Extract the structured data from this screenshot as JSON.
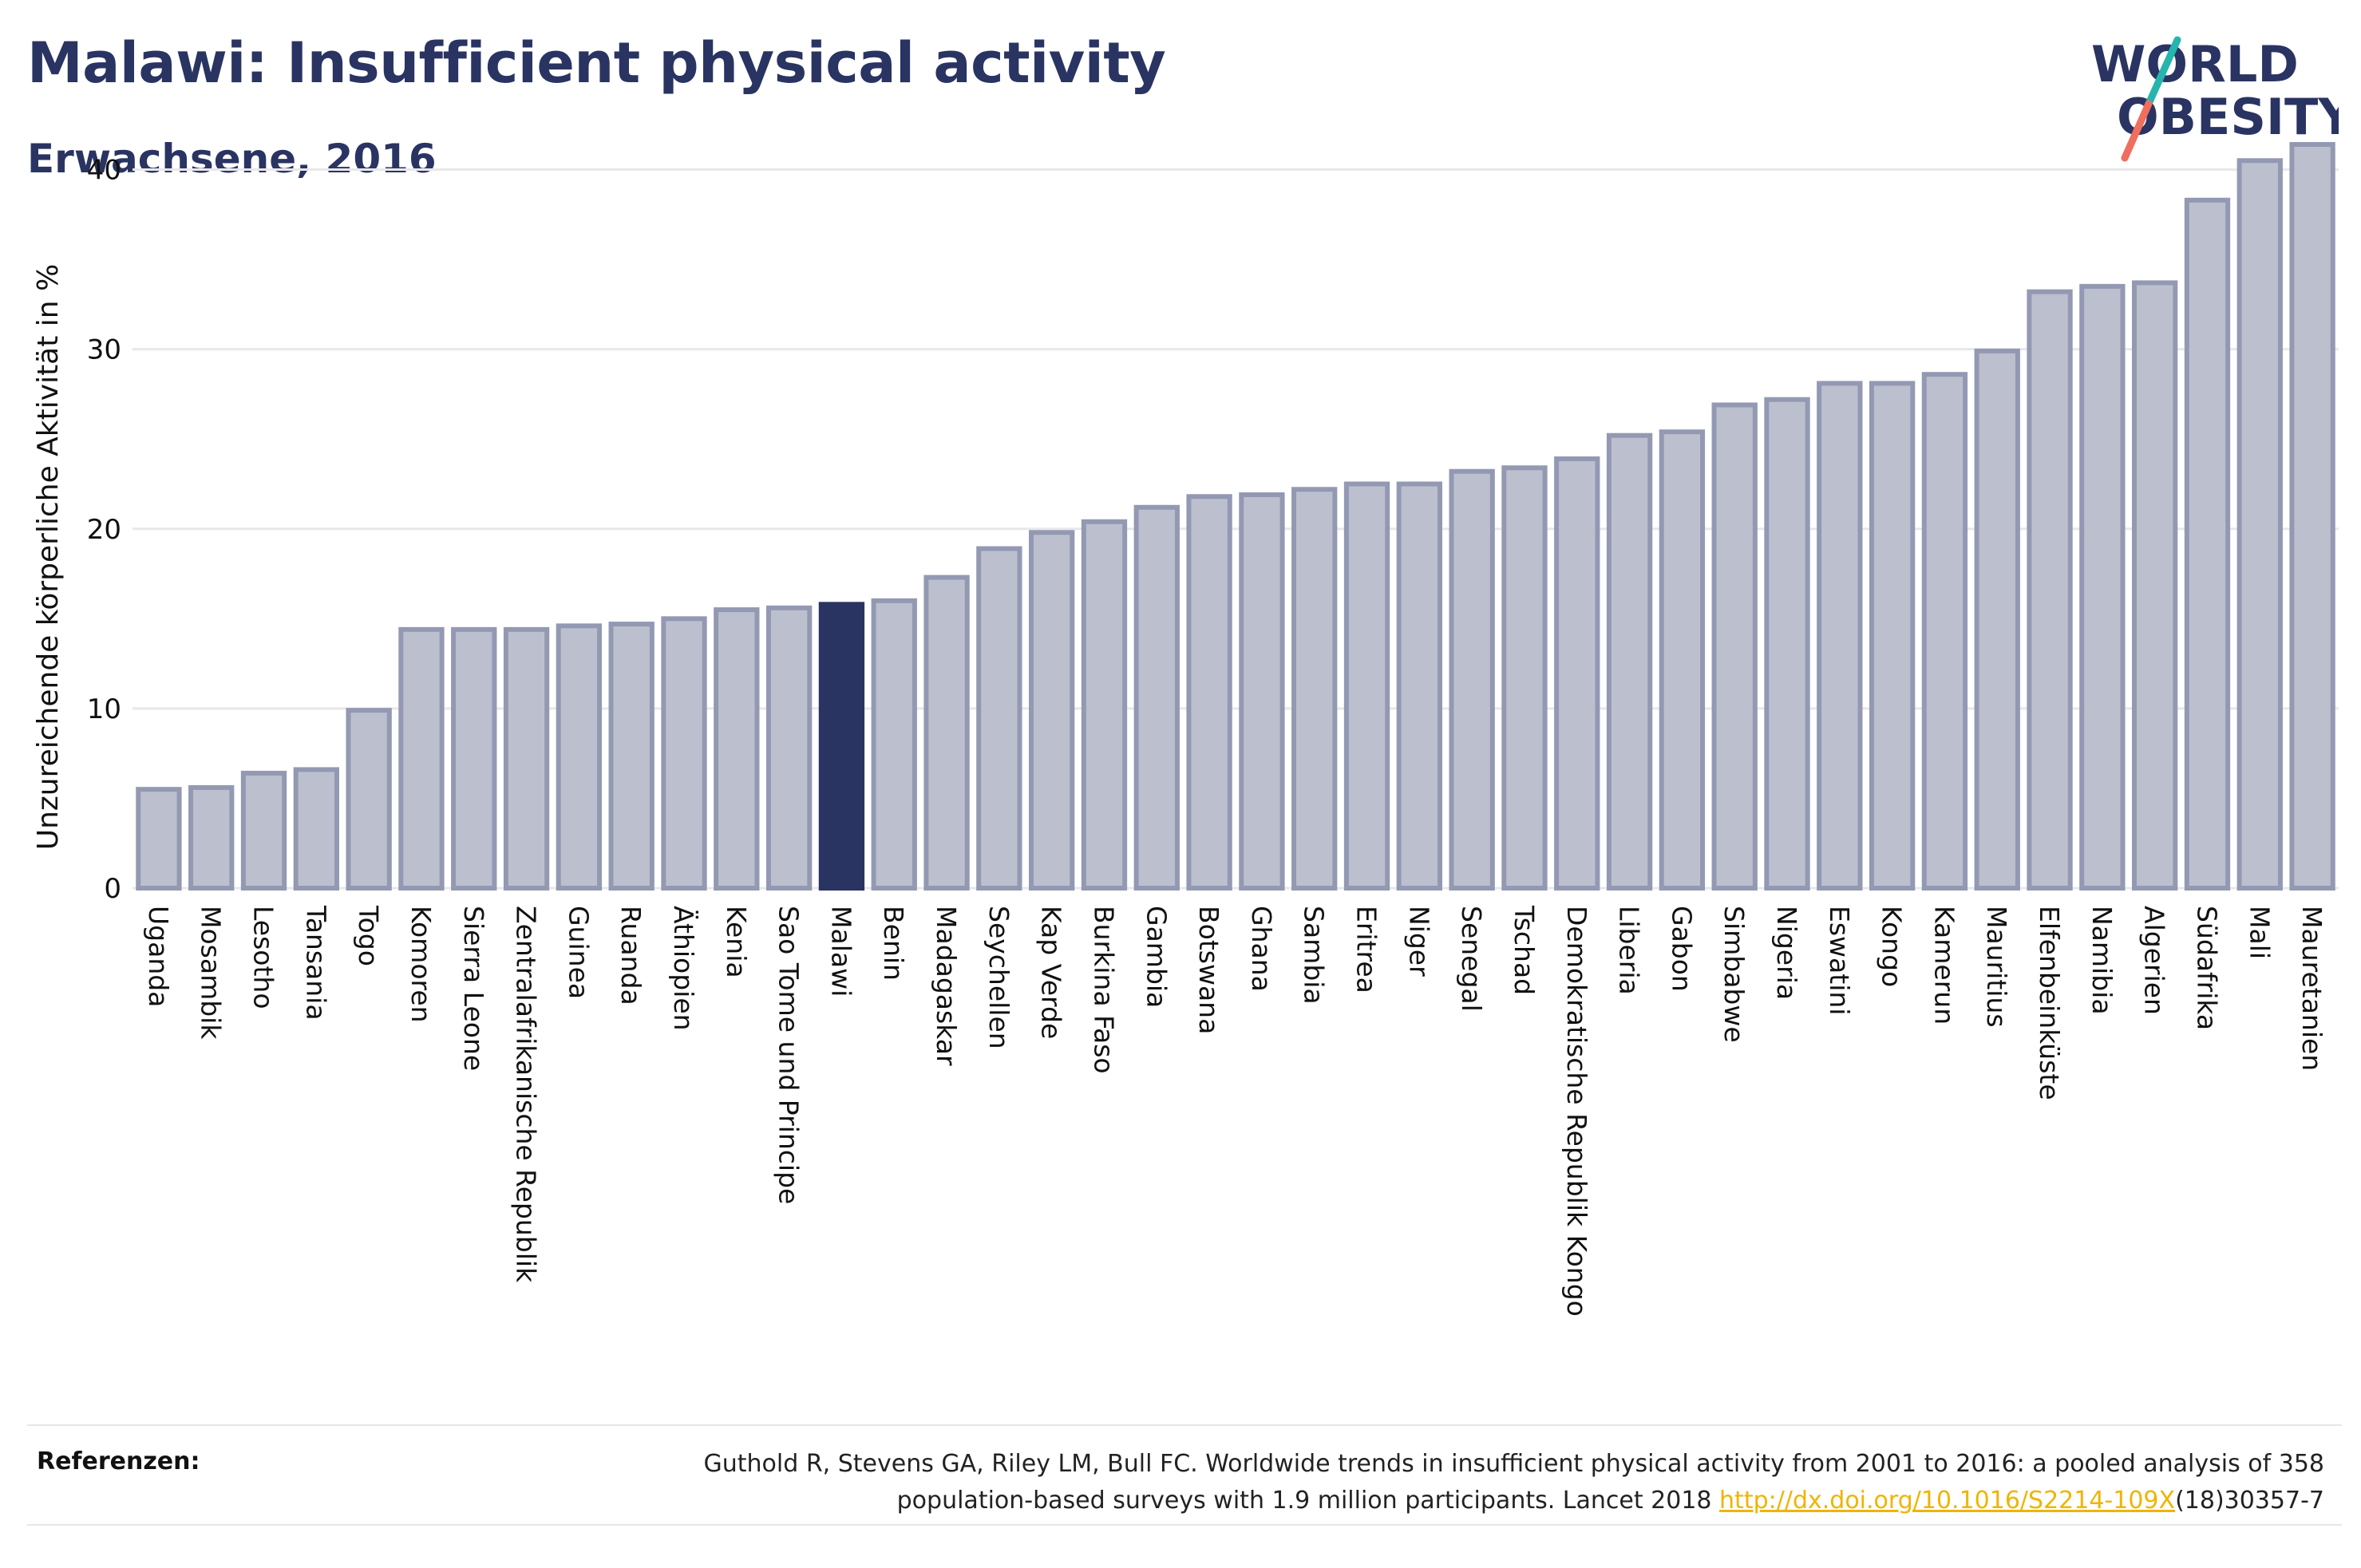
{
  "header": {
    "title": "Malawi: Insufficient physical activity",
    "subtitle": "Erwachsene, 2016"
  },
  "logo": {
    "line1": "WORLD",
    "line2": "OBESITY",
    "colors": {
      "text": "#2a3462",
      "slash_teal": "#26b5ad",
      "slash_coral": "#ef6e5d"
    }
  },
  "chart_data": {
    "type": "bar",
    "ylabel": "Unzureichende körperliche Aktivität in %",
    "ylim": [
      0,
      43
    ],
    "yticks": [
      0,
      10,
      20,
      30,
      40
    ],
    "grid": true,
    "highlight": "Malawi",
    "colors": {
      "bar": "#bcc0ce",
      "bar_border": "#9399b2",
      "highlight": "#2a3462",
      "grid": "#e8e8ec"
    },
    "categories": [
      "Uganda",
      "Mosambik",
      "Lesotho",
      "Tansania",
      "Togo",
      "Komoren",
      "Sierra Leone",
      "Zentralafrikanische Republik",
      "Guinea",
      "Ruanda",
      "Äthiopien",
      "Kenia",
      "Sao Tome und Principe",
      "Malawi",
      "Benin",
      "Madagaskar",
      "Seychellen",
      "Kap Verde",
      "Burkina Faso",
      "Gambia",
      "Botswana",
      "Ghana",
      "Sambia",
      "Eritrea",
      "Niger",
      "Senegal",
      "Tschad",
      "Demokratische Republik Kongo",
      "Liberia",
      "Gabon",
      "Simbabwe",
      "Nigeria",
      "Eswatini",
      "Kongo",
      "Kamerun",
      "Mauritius",
      "Elfenbeinküste",
      "Namibia",
      "Algerien",
      "Südafrika",
      "Mali",
      "Mauretanien"
    ],
    "values": [
      5.5,
      5.6,
      6.4,
      6.6,
      9.9,
      14.4,
      14.4,
      14.4,
      14.6,
      14.7,
      15.0,
      15.5,
      15.6,
      15.8,
      16.0,
      17.3,
      18.9,
      19.8,
      20.4,
      21.2,
      21.8,
      21.9,
      22.2,
      22.5,
      22.5,
      23.2,
      23.4,
      23.9,
      25.2,
      25.4,
      26.9,
      27.2,
      28.1,
      28.1,
      28.6,
      29.9,
      33.2,
      33.5,
      33.7,
      38.3,
      40.5,
      41.4
    ]
  },
  "references": {
    "label": "Referenzen:",
    "text_line1": "Guthold R, Stevens GA, Riley LM, Bull FC. Worldwide trends in insufficient physical activity from 2001 to 2016: a pooled analysis of 358",
    "text_line2_prefix": "population-based surveys with 1.9 million participants. Lancet 2018 ",
    "link": "http://dx.doi.org/10.1016/S2214-109X",
    "text_line2_suffix": "(18)30357-7"
  }
}
